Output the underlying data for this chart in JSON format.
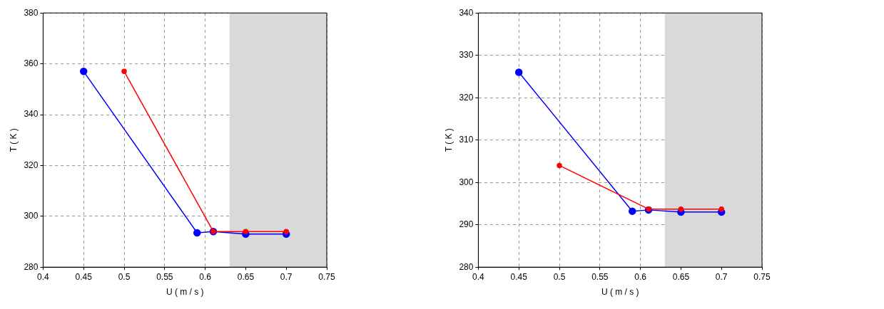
{
  "chart_data": [
    {
      "type": "line",
      "xlabel": "U ( m / s )",
      "ylabel": "T ( K )",
      "xlim": [
        0.4,
        0.75
      ],
      "xticks": [
        0.4,
        0.45,
        0.5,
        0.55,
        0.6,
        0.65,
        0.7,
        0.75
      ],
      "ylim": [
        280,
        380
      ],
      "yticks": [
        280,
        300,
        320,
        340,
        360,
        380
      ],
      "grid": true,
      "marker": "circle",
      "line_style": "solid",
      "bands": [
        {
          "axis": "x",
          "from": 0.63,
          "to": 0.75,
          "color": "#d9d9d9"
        }
      ],
      "series": [
        {
          "color": "#ff0000",
          "x": [
            0.5,
            0.61,
            0.65,
            0.7
          ],
          "values": [
            357,
            294,
            294,
            294
          ]
        },
        {
          "color": "#0000ff",
          "x": [
            0.45,
            0.59,
            0.61,
            0.65,
            0.7
          ],
          "values": [
            357,
            293.5,
            294,
            293,
            293
          ]
        }
      ]
    },
    {
      "type": "line",
      "xlabel": "U ( m / s )",
      "ylabel": "T ( K )",
      "xlim": [
        0.4,
        0.75
      ],
      "xticks": [
        0.4,
        0.45,
        0.5,
        0.55,
        0.6,
        0.65,
        0.7,
        0.75
      ],
      "ylim": [
        280,
        340
      ],
      "yticks": [
        280,
        290,
        300,
        310,
        320,
        330,
        340
      ],
      "grid": true,
      "marker": "circle",
      "line_style": "solid",
      "bands": [
        {
          "axis": "x",
          "from": 0.63,
          "to": 0.75,
          "color": "#d9d9d9"
        }
      ],
      "series": [
        {
          "color": "#ff0000",
          "x": [
            0.5,
            0.61,
            0.65,
            0.7
          ],
          "values": [
            304,
            293.7,
            293.7,
            293.7
          ]
        },
        {
          "color": "#0000ff",
          "x": [
            0.45,
            0.59,
            0.61,
            0.65,
            0.7
          ],
          "values": [
            326,
            293.2,
            293.5,
            293,
            293
          ]
        }
      ]
    }
  ]
}
